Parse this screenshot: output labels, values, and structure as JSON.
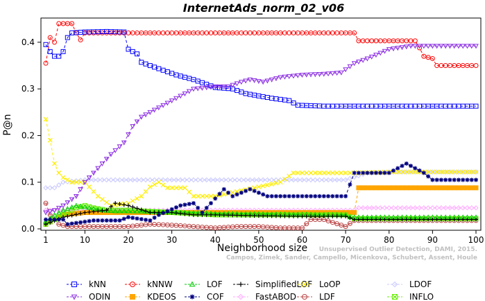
{
  "chart_data": {
    "type": "line",
    "title": "InternetAds_norm_02_v06",
    "xlabel": "Neighborhood size",
    "ylabel": "P@n",
    "xlim": [
      1,
      100
    ],
    "ylim": [
      0,
      0.44
    ],
    "xticks": [
      1,
      10,
      20,
      30,
      40,
      50,
      60,
      70,
      80,
      90,
      100
    ],
    "yticks": [
      0.0,
      0.1,
      0.2,
      0.3,
      0.4
    ],
    "ytick_labels": [
      "0.0",
      "0.1",
      "0.2",
      "0.3",
      "0.4"
    ],
    "grid": false,
    "legend_position": "bottom",
    "watermark": [
      "Unsupervised Outlier Detection, DAMI, 2015.",
      "Campos, Zimek, Sander, Campello, Micenkova, Schubert, Assent, Houle"
    ],
    "series": [
      {
        "name": "kNN",
        "color": "#0000ff",
        "marker": "square",
        "points": [
          [
            1,
            0.395
          ],
          [
            2,
            0.38
          ],
          [
            3,
            0.37
          ],
          [
            4,
            0.37
          ],
          [
            5,
            0.38
          ],
          [
            6,
            0.41
          ],
          [
            7,
            0.42
          ],
          [
            10,
            0.422
          ],
          [
            15,
            0.423
          ],
          [
            19,
            0.422
          ],
          [
            20,
            0.385
          ],
          [
            22,
            0.375
          ],
          [
            23,
            0.357
          ],
          [
            25,
            0.35
          ],
          [
            28,
            0.34
          ],
          [
            31,
            0.33
          ],
          [
            35,
            0.32
          ],
          [
            38,
            0.31
          ],
          [
            40,
            0.303
          ],
          [
            44,
            0.3
          ],
          [
            47,
            0.29
          ],
          [
            50,
            0.285
          ],
          [
            53,
            0.28
          ],
          [
            57,
            0.275
          ],
          [
            59,
            0.265
          ],
          [
            65,
            0.263
          ],
          [
            70,
            0.263
          ],
          [
            80,
            0.263
          ],
          [
            90,
            0.263
          ],
          [
            100,
            0.263
          ]
        ]
      },
      {
        "name": "kNNW",
        "color": "#ff0000",
        "marker": "circle",
        "points": [
          [
            1,
            0.355
          ],
          [
            2,
            0.41
          ],
          [
            3,
            0.4
          ],
          [
            4,
            0.44
          ],
          [
            7,
            0.44
          ],
          [
            8,
            0.42
          ],
          [
            9,
            0.405
          ],
          [
            10,
            0.42
          ],
          [
            20,
            0.42
          ],
          [
            40,
            0.42
          ],
          [
            60,
            0.42
          ],
          [
            72,
            0.42
          ],
          [
            73,
            0.403
          ],
          [
            86,
            0.403
          ],
          [
            87,
            0.388
          ],
          [
            88,
            0.37
          ],
          [
            90,
            0.365
          ],
          [
            91,
            0.35
          ],
          [
            100,
            0.35
          ]
        ]
      },
      {
        "name": "LOF",
        "color": "#00cc00",
        "marker": "triangle-up",
        "points": [
          [
            1,
            0.015
          ],
          [
            3,
            0.03
          ],
          [
            5,
            0.04
          ],
          [
            8,
            0.05
          ],
          [
            11,
            0.045
          ],
          [
            14,
            0.04
          ],
          [
            17,
            0.038
          ],
          [
            20,
            0.038
          ],
          [
            30,
            0.036
          ],
          [
            40,
            0.033
          ],
          [
            50,
            0.032
          ],
          [
            60,
            0.031
          ],
          [
            70,
            0.03
          ],
          [
            71,
            0.025
          ],
          [
            80,
            0.025
          ],
          [
            90,
            0.025
          ],
          [
            100,
            0.025
          ]
        ]
      },
      {
        "name": "SimplifiedLOF",
        "color": "#000000",
        "marker": "plus",
        "points": [
          [
            1,
            0.01
          ],
          [
            5,
            0.025
          ],
          [
            10,
            0.035
          ],
          [
            15,
            0.04
          ],
          [
            17,
            0.055
          ],
          [
            20,
            0.05
          ],
          [
            25,
            0.035
          ],
          [
            30,
            0.035
          ],
          [
            35,
            0.03
          ],
          [
            40,
            0.03
          ],
          [
            50,
            0.028
          ],
          [
            60,
            0.027
          ],
          [
            70,
            0.027
          ],
          [
            72,
            0.02
          ],
          [
            80,
            0.02
          ],
          [
            90,
            0.02
          ],
          [
            100,
            0.02
          ]
        ]
      },
      {
        "name": "LoOP",
        "color": "#ffee00",
        "marker": "x",
        "points": [
          [
            1,
            0.235
          ],
          [
            2,
            0.19
          ],
          [
            3,
            0.14
          ],
          [
            4,
            0.12
          ],
          [
            5,
            0.11
          ],
          [
            7,
            0.1
          ],
          [
            10,
            0.1
          ],
          [
            13,
            0.07
          ],
          [
            16,
            0.05
          ],
          [
            20,
            0.055
          ],
          [
            23,
            0.07
          ],
          [
            25,
            0.09
          ],
          [
            27,
            0.1
          ],
          [
            29,
            0.088
          ],
          [
            33,
            0.088
          ],
          [
            35,
            0.07
          ],
          [
            40,
            0.07
          ],
          [
            45,
            0.08
          ],
          [
            50,
            0.09
          ],
          [
            55,
            0.1
          ],
          [
            58,
            0.12
          ],
          [
            62,
            0.12
          ],
          [
            67,
            0.12
          ],
          [
            72,
            0.12
          ],
          [
            80,
            0.122
          ],
          [
            90,
            0.122
          ],
          [
            100,
            0.122
          ]
        ]
      },
      {
        "name": "LDOF",
        "color": "#c8c8ff",
        "marker": "diamond",
        "points": [
          [
            1,
            0.088
          ],
          [
            3,
            0.088
          ],
          [
            5,
            0.1
          ],
          [
            10,
            0.105
          ],
          [
            20,
            0.105
          ],
          [
            30,
            0.105
          ],
          [
            40,
            0.105
          ],
          [
            50,
            0.105
          ],
          [
            60,
            0.105
          ],
          [
            70,
            0.105
          ],
          [
            75,
            0.12
          ],
          [
            80,
            0.122
          ],
          [
            90,
            0.122
          ],
          [
            100,
            0.122
          ]
        ]
      },
      {
        "name": "ODIN",
        "color": "#8a2be2",
        "marker": "triangle-down",
        "points": [
          [
            1,
            0.035
          ],
          [
            3,
            0.04
          ],
          [
            5,
            0.05
          ],
          [
            8,
            0.07
          ],
          [
            10,
            0.1
          ],
          [
            13,
            0.13
          ],
          [
            16,
            0.16
          ],
          [
            19,
            0.185
          ],
          [
            21,
            0.22
          ],
          [
            23,
            0.24
          ],
          [
            27,
            0.26
          ],
          [
            31,
            0.28
          ],
          [
            35,
            0.3
          ],
          [
            40,
            0.305
          ],
          [
            43,
            0.305
          ],
          [
            46,
            0.315
          ],
          [
            48,
            0.32
          ],
          [
            51,
            0.315
          ],
          [
            55,
            0.325
          ],
          [
            60,
            0.33
          ],
          [
            65,
            0.332
          ],
          [
            69,
            0.335
          ],
          [
            72,
            0.355
          ],
          [
            75,
            0.365
          ],
          [
            80,
            0.385
          ],
          [
            85,
            0.392
          ],
          [
            90,
            0.392
          ],
          [
            100,
            0.392
          ]
        ]
      },
      {
        "name": "KDEOS",
        "color": "#ffa500",
        "marker": "square-filled",
        "points": [
          [
            1,
            0.01
          ],
          [
            5,
            0.03
          ],
          [
            10,
            0.035
          ],
          [
            20,
            0.035
          ],
          [
            40,
            0.035
          ],
          [
            60,
            0.035
          ],
          [
            72,
            0.035
          ],
          [
            73,
            0.088
          ],
          [
            80,
            0.088
          ],
          [
            90,
            0.088
          ],
          [
            100,
            0.088
          ]
        ]
      },
      {
        "name": "COF",
        "color": "#000080",
        "marker": "asterisk",
        "points": [
          [
            1,
            0.02
          ],
          [
            3,
            0.02
          ],
          [
            5,
            0.02
          ],
          [
            6,
            0.01
          ],
          [
            12,
            0.018
          ],
          [
            14,
            0.018
          ],
          [
            18,
            0.018
          ],
          [
            20,
            0.025
          ],
          [
            25,
            0.018
          ],
          [
            27,
            0.03
          ],
          [
            32,
            0.05
          ],
          [
            35,
            0.055
          ],
          [
            37,
            0.035
          ],
          [
            40,
            0.065
          ],
          [
            42,
            0.085
          ],
          [
            44,
            0.07
          ],
          [
            48,
            0.085
          ],
          [
            52,
            0.07
          ],
          [
            55,
            0.07
          ],
          [
            60,
            0.07
          ],
          [
            65,
            0.07
          ],
          [
            70,
            0.07
          ],
          [
            72,
            0.12
          ],
          [
            80,
            0.12
          ],
          [
            84,
            0.14
          ],
          [
            88,
            0.12
          ],
          [
            90,
            0.105
          ],
          [
            100,
            0.105
          ]
        ]
      },
      {
        "name": "FastABOD",
        "color": "#ffaaff",
        "marker": "diamond",
        "points": [
          [
            1,
            0.04
          ],
          [
            5,
            0.04
          ],
          [
            10,
            0.04
          ],
          [
            20,
            0.04
          ],
          [
            40,
            0.04
          ],
          [
            60,
            0.04
          ],
          [
            72,
            0.04
          ],
          [
            73,
            0.045
          ],
          [
            80,
            0.045
          ],
          [
            90,
            0.045
          ],
          [
            100,
            0.045
          ]
        ]
      },
      {
        "name": "LDF",
        "color": "#bb4444",
        "marker": "circle-dot",
        "points": [
          [
            1,
            0.055
          ],
          [
            2,
            0.03
          ],
          [
            4,
            0.01
          ],
          [
            6,
            0.005
          ],
          [
            10,
            0.005
          ],
          [
            20,
            0.005
          ],
          [
            25,
            0.01
          ],
          [
            30,
            0.008
          ],
          [
            40,
            0.002
          ],
          [
            45,
            0.005
          ],
          [
            50,
            0.005
          ],
          [
            55,
            0.002
          ],
          [
            60,
            0.002
          ],
          [
            62,
            0.02
          ],
          [
            65,
            0.02
          ],
          [
            70,
            0.005
          ],
          [
            72,
            0.018
          ],
          [
            80,
            0.018
          ],
          [
            90,
            0.018
          ],
          [
            100,
            0.018
          ]
        ]
      },
      {
        "name": "INFLO",
        "color": "#66ee00",
        "marker": "hourglass",
        "points": [
          [
            1,
            0.01
          ],
          [
            3,
            0.02
          ],
          [
            5,
            0.03
          ],
          [
            8,
            0.045
          ],
          [
            10,
            0.05
          ],
          [
            12,
            0.045
          ],
          [
            15,
            0.04
          ],
          [
            20,
            0.04
          ],
          [
            30,
            0.035
          ],
          [
            40,
            0.03
          ],
          [
            50,
            0.03
          ],
          [
            60,
            0.03
          ],
          [
            70,
            0.03
          ],
          [
            72,
            0.022
          ],
          [
            80,
            0.022
          ],
          [
            90,
            0.022
          ],
          [
            100,
            0.022
          ]
        ]
      }
    ],
    "legend_order": [
      [
        "kNN",
        "kNNW",
        "LOF",
        "SimplifiedLOF",
        "LoOP",
        "LDOF"
      ],
      [
        "ODIN",
        "KDEOS",
        "COF",
        "FastABOD",
        "LDF",
        "INFLO"
      ]
    ]
  }
}
